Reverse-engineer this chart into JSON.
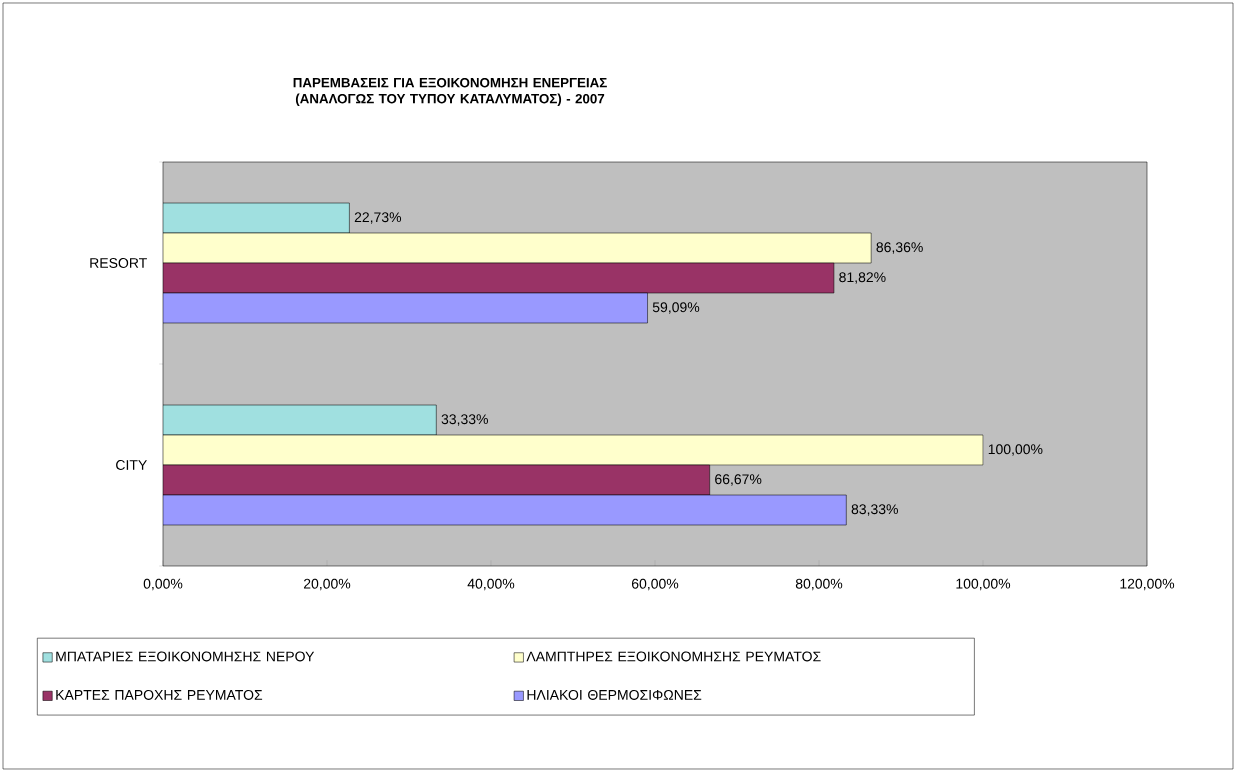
{
  "chart_data": {
    "type": "bar",
    "orientation": "horizontal",
    "title": "ΠΑΡΕΜΒΑΣΕΙΣ ΓΙΑ ΕΞΟΙΚΟΝΟΜΗΣΗ ΕΝΕΡΓΕΙΑΣ (ΑΝΑΛΟΓΩΣ ΤΟΥ ΤΥΠΟΥ ΚΑΤΑΛΥΜΑΤΟΣ) - 2007",
    "categories": [
      "RESORT",
      "CITY"
    ],
    "series": [
      {
        "name": "ΜΠΑΤΑΡΙΕΣ ΕΞΟΙΚΟΝΟΜΗΣΗΣ ΝΕΡΟΥ",
        "color": "#a0e0e0",
        "values": [
          22.73,
          33.33
        ],
        "value_labels": [
          "22,73%",
          "33,33%"
        ]
      },
      {
        "name": "ΛΑΜΠΤΗΡΕΣ ΕΞΟΙΚΟΝΟΜΗΣΗΣ ΡΕΥΜΑΤΟΣ",
        "color": "#ffffcc",
        "values": [
          86.36,
          100
        ],
        "value_labels": [
          "86,36%",
          "100,00%"
        ]
      },
      {
        "name": "ΚΑΡΤΕΣ ΠΑΡΟΧΗΣ ΡΕΥΜΑΤΟΣ",
        "color": "#993366",
        "values": [
          81.82,
          66.67
        ],
        "value_labels": [
          "81,82%",
          "66,67%"
        ]
      },
      {
        "name": "ΗΛΙΑΚΟΙ ΘΕΡΜΟΣΙΦΩΝΕΣ",
        "color": "#9999ff",
        "values": [
          59.09,
          83.33
        ],
        "value_labels": [
          "59,09%",
          "83,33%"
        ]
      }
    ],
    "xlim": [
      0,
      120
    ],
    "xticks": [
      {
        "value": 0,
        "label": "0,00%"
      },
      {
        "value": 20,
        "label": "20,00%"
      },
      {
        "value": 40,
        "label": "40,00%"
      },
      {
        "value": 60,
        "label": "60,00%"
      },
      {
        "value": 80,
        "label": "80,00%"
      },
      {
        "value": 100,
        "label": "100,00%"
      },
      {
        "value": 120,
        "label": "120,00%"
      }
    ],
    "legend": "bottom",
    "grid": false
  }
}
